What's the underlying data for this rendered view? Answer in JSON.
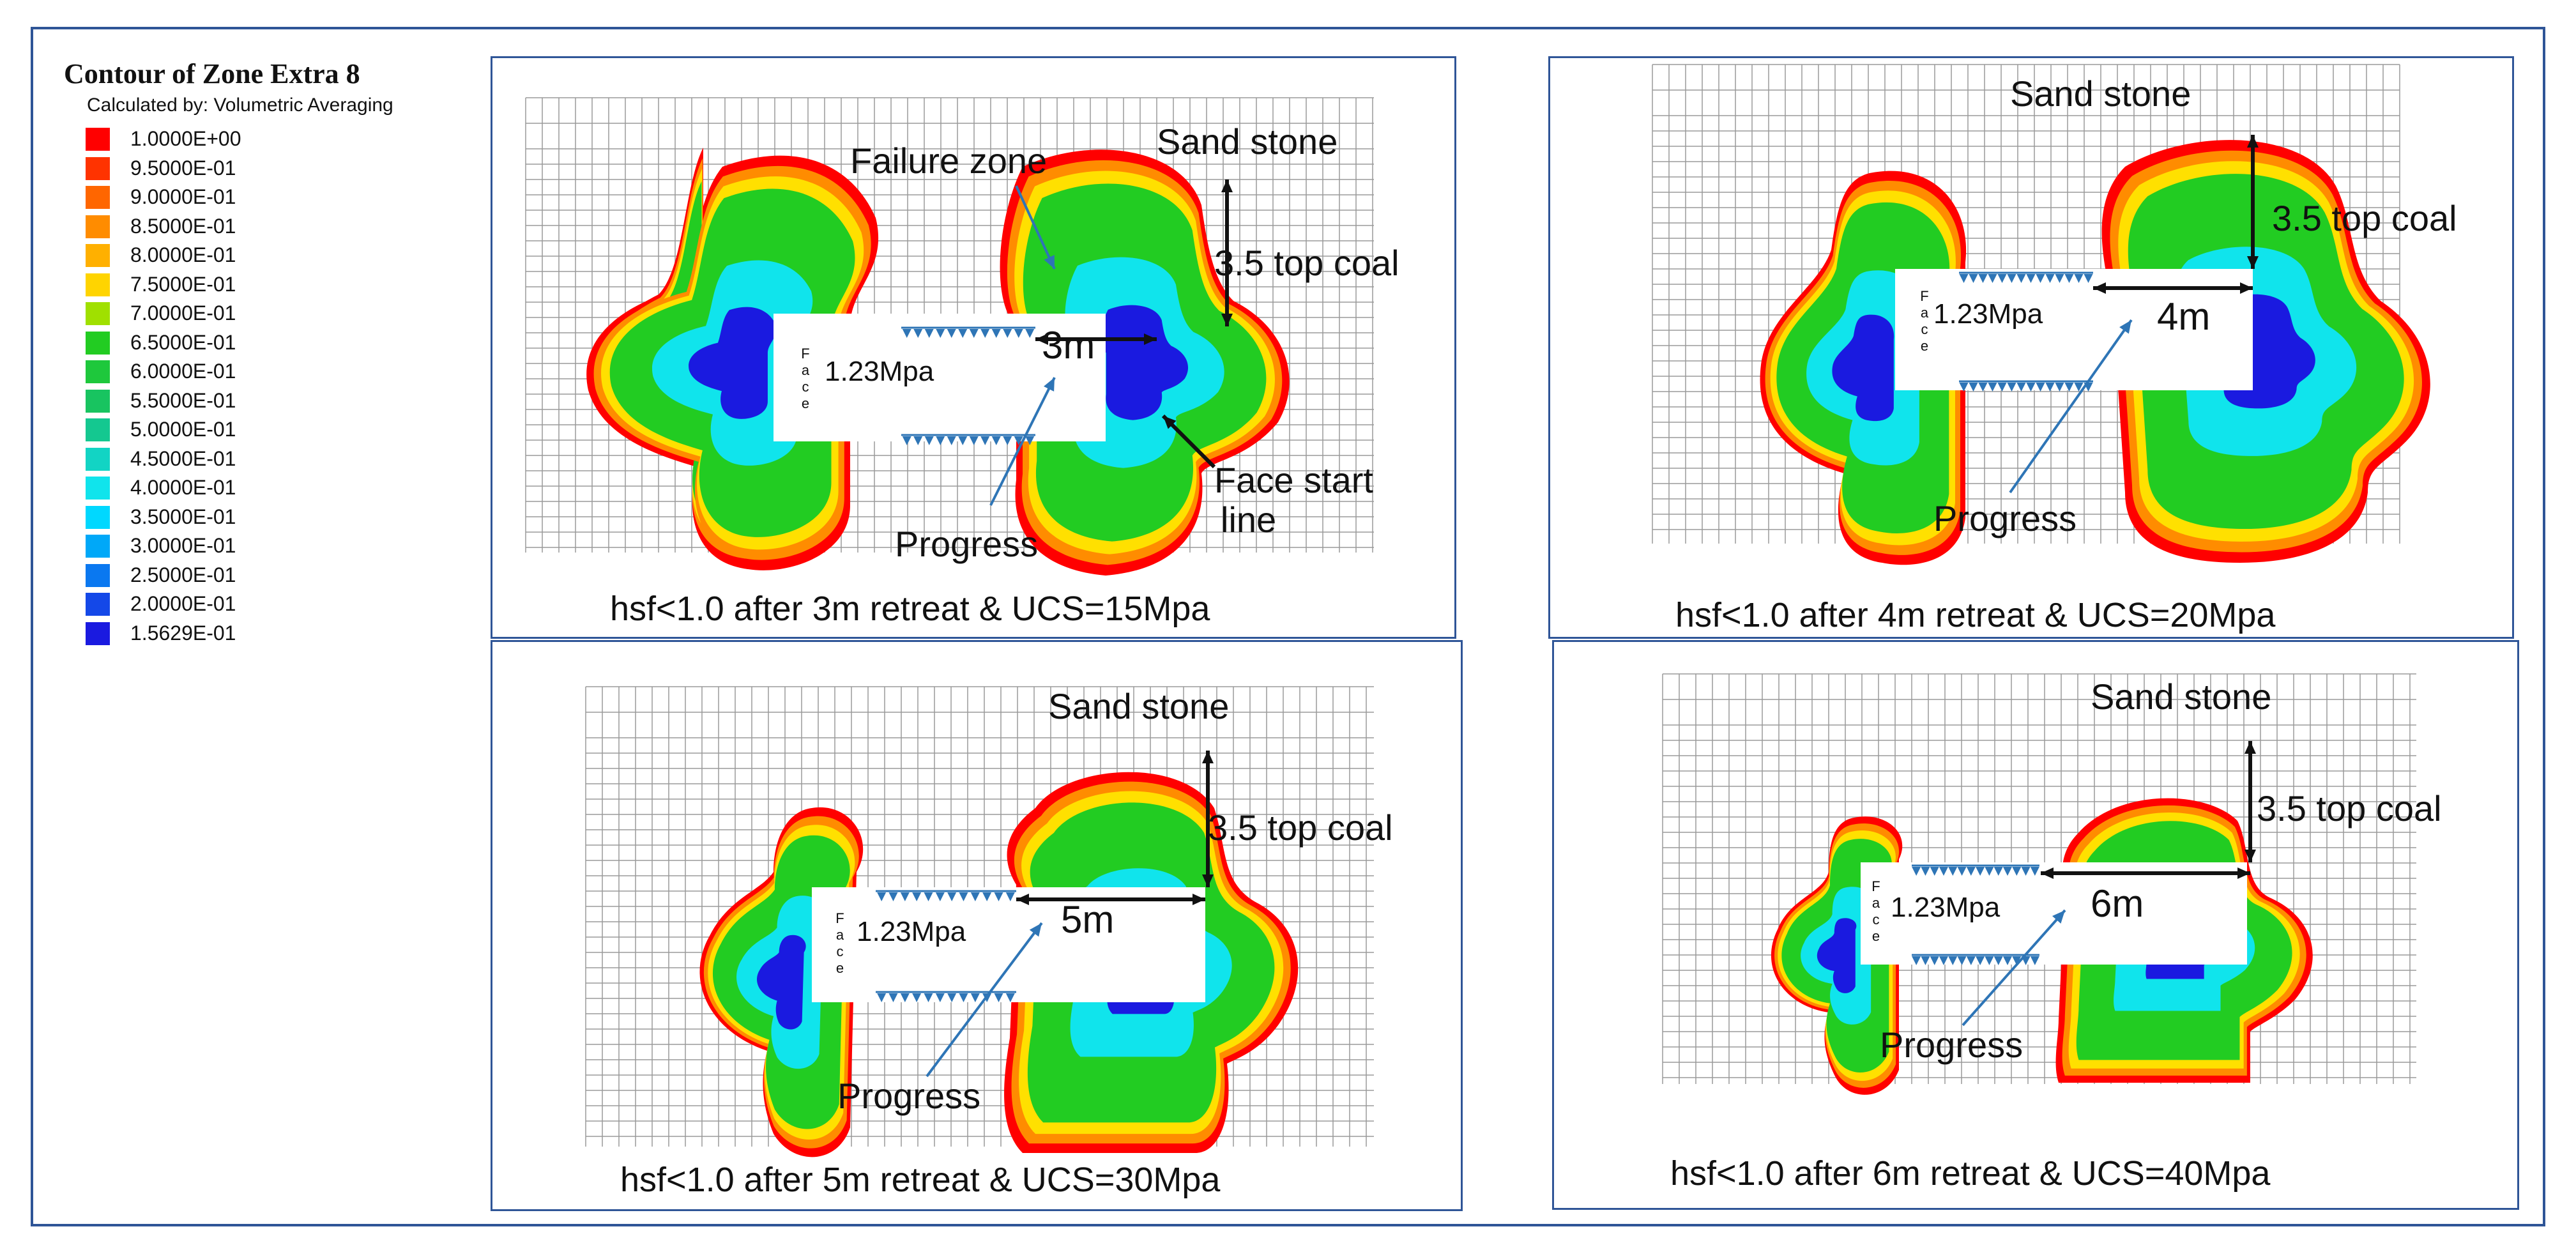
{
  "legend": {
    "title": "Contour of Zone Extra 8",
    "subtitle": "Calculated by: Volumetric Averaging",
    "entries": [
      {
        "value": "1.0000E+00",
        "color": "#ff0000"
      },
      {
        "value": "9.5000E-01",
        "color": "#ff3300"
      },
      {
        "value": "9.0000E-01",
        "color": "#ff6600"
      },
      {
        "value": "8.5000E-01",
        "color": "#ff8c00"
      },
      {
        "value": "8.0000E-01",
        "color": "#ffb000"
      },
      {
        "value": "7.5000E-01",
        "color": "#ffd400"
      },
      {
        "value": "7.0000E-01",
        "color": "#a0e000"
      },
      {
        "value": "6.5000E-01",
        "color": "#22cc22"
      },
      {
        "value": "6.0000E-01",
        "color": "#1ec83c"
      },
      {
        "value": "5.5000E-01",
        "color": "#18c460"
      },
      {
        "value": "5.0000E-01",
        "color": "#14c890"
      },
      {
        "value": "4.5000E-01",
        "color": "#12d4c4"
      },
      {
        "value": "4.0000E-01",
        "color": "#10e4ec"
      },
      {
        "value": "3.5000E-01",
        "color": "#00d8ff"
      },
      {
        "value": "3.0000E-01",
        "color": "#00a8f8"
      },
      {
        "value": "2.5000E-01",
        "color": "#0a78f0"
      },
      {
        "value": "2.0000E-01",
        "color": "#1448e8"
      },
      {
        "value": "1.5629E-01",
        "color": "#1a1ae0"
      }
    ]
  },
  "labels": {
    "sandstone": "Sand stone",
    "top_coal": "3.5 top coal",
    "failure_zone": "Failure zone",
    "face_start": "Face start",
    "face_start_2": "line",
    "progress": "Progress",
    "pressure": "1.23Mpa",
    "face_letters": [
      "F",
      "a",
      "c",
      "e"
    ]
  },
  "panels": [
    {
      "retreat": "3m",
      "caption": "hsf<1.0 after 3m retreat & UCS=15Mpa"
    },
    {
      "retreat": "4m",
      "caption": "hsf<1.0 after 4m retreat & UCS=20Mpa"
    },
    {
      "retreat": "5m",
      "caption": "hsf<1.0 after 5m retreat & UCS=30Mpa"
    },
    {
      "retreat": "6m",
      "caption": "hsf<1.0 after 6m retreat & UCS=40Mpa"
    }
  ],
  "colors": {
    "frame": "#2f5597",
    "arrow": "#2e75b6",
    "red": "#ff0000",
    "orange": "#ff8c00",
    "yellow": "#ffe000",
    "green": "#22cc22",
    "cyan": "#10e4ec",
    "blue": "#1a1ae0"
  }
}
